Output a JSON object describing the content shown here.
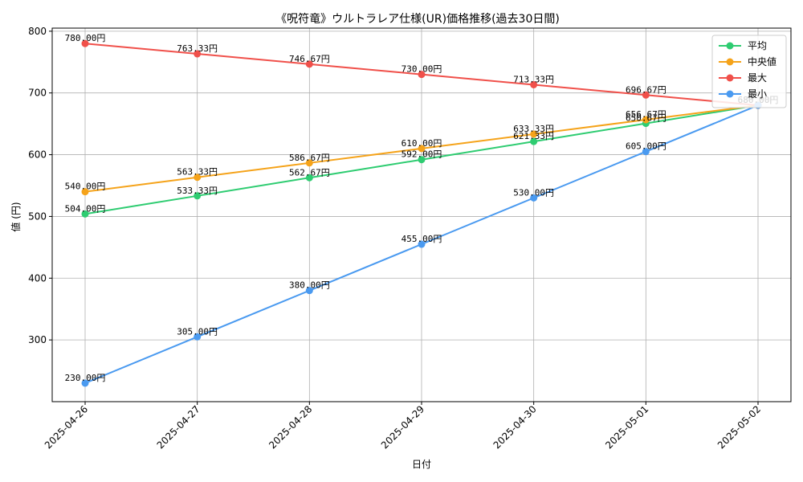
{
  "chart_data": {
    "type": "line",
    "title": "《呪符竜》ウルトラレア仕様(UR)価格推移(過去30日間)",
    "xlabel": "日付",
    "ylabel": "値 (円)",
    "x": [
      "2025-04-26",
      "2025-04-27",
      "2025-04-28",
      "2025-04-29",
      "2025-04-30",
      "2025-05-01",
      "2025-05-02"
    ],
    "ylim": [
      200,
      805
    ],
    "yticks": [
      300,
      400,
      500,
      600,
      700,
      800
    ],
    "grid": true,
    "legend_position": "top-right",
    "value_suffix": "円",
    "series": [
      {
        "name": "平均",
        "color": "#2ecc71",
        "values": [
          504.0,
          533.33,
          562.67,
          592.0,
          621.33,
          650.67,
          680.0
        ]
      },
      {
        "name": "中央値",
        "color": "#f5a31a",
        "values": [
          540.0,
          563.33,
          586.67,
          610.0,
          633.33,
          656.67,
          680.0
        ]
      },
      {
        "name": "最大",
        "color": "#f0504a",
        "values": [
          780.0,
          763.33,
          746.67,
          730.0,
          713.33,
          696.67,
          680.0
        ]
      },
      {
        "name": "最小",
        "color": "#4a9af0",
        "values": [
          230.0,
          305.0,
          380.0,
          455.0,
          530.0,
          605.0,
          680.0
        ]
      }
    ]
  }
}
